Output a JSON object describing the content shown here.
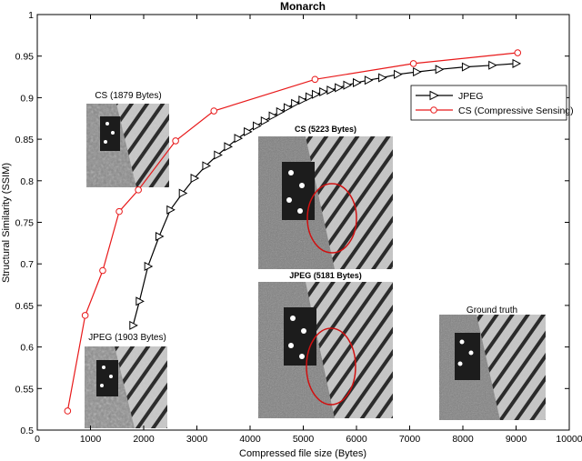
{
  "chart_data": {
    "type": "line",
    "title": "Monarch",
    "xlabel": "Compressed file size (Bytes)",
    "ylabel": "Structural Similarity (SSIM)",
    "xlim": [
      0,
      10000
    ],
    "ylim": [
      0.5,
      1
    ],
    "xticks": [
      "0",
      "1000",
      "2000",
      "3000",
      "4000",
      "5000",
      "6000",
      "7000",
      "8000",
      "9000",
      "10000"
    ],
    "yticks": [
      "0.5",
      "0.55",
      "0.6",
      "0.65",
      "0.7",
      "0.75",
      "0.8",
      "0.85",
      "0.9",
      "0.95",
      "1"
    ],
    "grid": false,
    "legend_position": "right",
    "series": [
      {
        "name": "JPEG",
        "color": "#000000",
        "marker": "triangle-right",
        "x": [
          1800,
          1920,
          2080,
          2290,
          2500,
          2730,
          2950,
          3170,
          3390,
          3580,
          3770,
          3950,
          4120,
          4270,
          4420,
          4560,
          4700,
          4840,
          4980,
          5110,
          5230,
          5370,
          5510,
          5660,
          5820,
          6000,
          6220,
          6480,
          6770,
          7130,
          7550,
          8050,
          8550,
          9000
        ],
        "y": [
          0.626,
          0.655,
          0.697,
          0.733,
          0.765,
          0.785,
          0.803,
          0.818,
          0.831,
          0.841,
          0.851,
          0.859,
          0.866,
          0.872,
          0.878,
          0.883,
          0.888,
          0.893,
          0.897,
          0.901,
          0.904,
          0.907,
          0.909,
          0.912,
          0.915,
          0.918,
          0.921,
          0.924,
          0.928,
          0.931,
          0.934,
          0.937,
          0.939,
          0.941
        ]
      },
      {
        "name": "CS (Compressive Sensing)",
        "color": "#e8191a",
        "marker": "circle",
        "x": [
          570,
          900,
          1230,
          1540,
          1900,
          2600,
          3320,
          5220,
          7070,
          9030
        ],
        "y": [
          0.523,
          0.638,
          0.692,
          0.763,
          0.789,
          0.848,
          0.884,
          0.922,
          0.941,
          0.954
        ]
      }
    ],
    "annotations": [
      {
        "text": "CS (1879 Bytes)"
      },
      {
        "text": "CS (5223 Bytes)"
      },
      {
        "text": "JPEG (5181 Bytes)"
      },
      {
        "text": "JPEG (1903 Bytes)"
      },
      {
        "text": "Ground truth"
      }
    ]
  }
}
